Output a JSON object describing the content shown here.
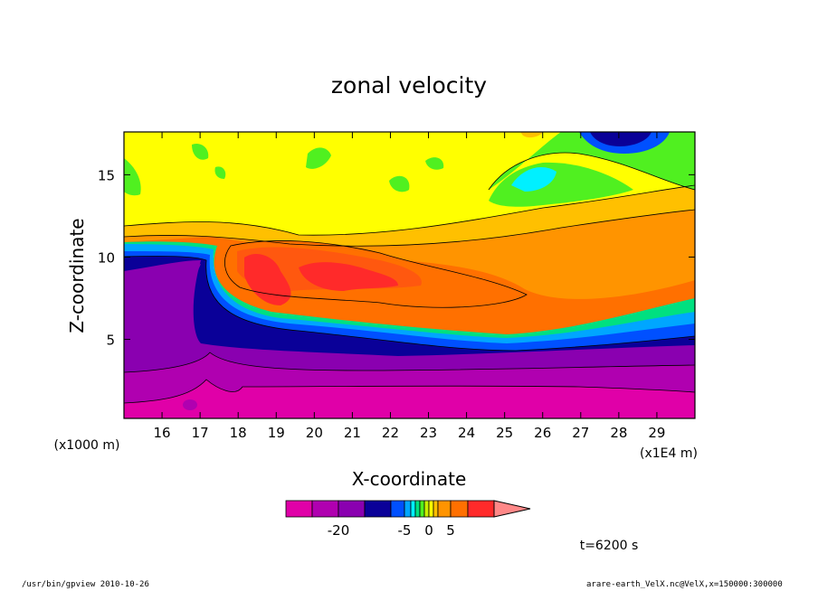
{
  "chart_data": {
    "type": "heatmap",
    "title": "zonal velocity",
    "xlabel": "X-coordinate",
    "ylabel": "Z-coordinate",
    "x_unit_label": "(x1E4 m)",
    "y_unit_label": "(x1000 m)",
    "x_ticks": [
      "16",
      "17",
      "18",
      "19",
      "20",
      "21",
      "22",
      "23",
      "24",
      "25",
      "26",
      "27",
      "28",
      "29"
    ],
    "y_ticks": [
      "5",
      "10",
      "15"
    ],
    "xlim": [
      15,
      30
    ],
    "ylim": [
      0.2,
      17.6
    ],
    "colorbar": {
      "levels": [
        -30,
        -25,
        -20,
        -15,
        -10,
        -5,
        -4,
        -3,
        -2,
        -1,
        0,
        1,
        2,
        5,
        10,
        15,
        20
      ],
      "colors": [
        "#e000a8",
        "#b000b0",
        "#8a00b0",
        "#0a0098",
        "#0050ff",
        "#00a6ff",
        "#00f0ff",
        "#00e080",
        "#50f020",
        "#c8f000",
        "#ffff00",
        "#ffc000",
        "#ff9400",
        "#ff7000",
        "#ff2a2a",
        "#ff8888"
      ],
      "tick_labels": [
        "-20",
        "-5",
        "0",
        "5"
      ]
    },
    "annotation": "t=6200 s"
  },
  "footer": {
    "left": "/usr/bin/gpview   2010-10-26",
    "right": "arare-earth_VelX.nc@VelX,x=150000:300000"
  }
}
